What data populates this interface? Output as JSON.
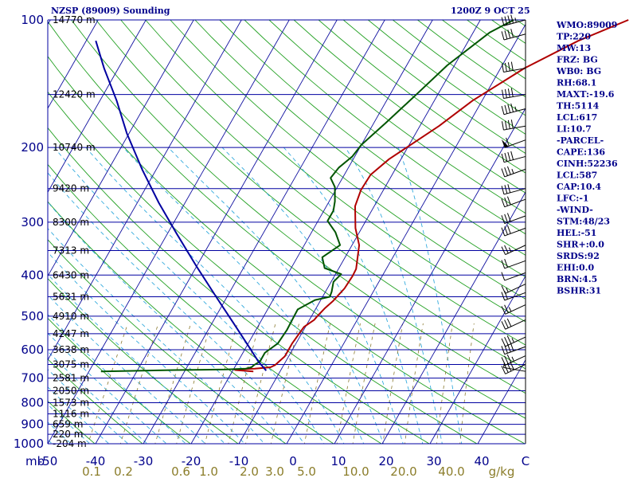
{
  "header": {
    "station": "NZSP (89009) Sounding",
    "time": "1200Z  9 OCT 25"
  },
  "colors": {
    "isobar": "#0000a0",
    "isotherm": "#1010a0",
    "dry_adiabat": "#22a022",
    "moist_adiabat": "#33aadd",
    "mixing_ratio": "#8a7a30",
    "temperature": "#b00000",
    "dewpoint": "#005500",
    "parcel": "#0000a0"
  },
  "chart_data": {
    "type": "line",
    "title": "NZSP (89009) Sounding",
    "pressure_levels": [
      {
        "p": 100,
        "label": "100",
        "height": "14770 m"
      },
      {
        "p": 150,
        "label": "",
        "height": "12420 m"
      },
      {
        "p": 200,
        "label": "200",
        "height": "10740 m"
      },
      {
        "p": 250,
        "label": "",
        "height": "9420 m"
      },
      {
        "p": 300,
        "label": "300",
        "height": "8300 m"
      },
      {
        "p": 350,
        "label": "",
        "height": "7313 m"
      },
      {
        "p": 400,
        "label": "400",
        "height": "6430 m"
      },
      {
        "p": 450,
        "label": "",
        "height": "5631 m"
      },
      {
        "p": 500,
        "label": "500",
        "height": "4910 m"
      },
      {
        "p": 550,
        "label": "",
        "height": "4247 m"
      },
      {
        "p": 600,
        "label": "600",
        "height": "3638 m"
      },
      {
        "p": 650,
        "label": "",
        "height": "3075 m"
      },
      {
        "p": 700,
        "label": "700",
        "height": "2581 m"
      },
      {
        "p": 750,
        "label": "",
        "height": "2050 m"
      },
      {
        "p": 800,
        "label": "800",
        "height": "1573 m"
      },
      {
        "p": 850,
        "label": "",
        "height": "1116 m"
      },
      {
        "p": 900,
        "label": "900",
        "height": "659 m"
      },
      {
        "p": 950,
        "label": "",
        "height": "220 m"
      },
      {
        "p": 1000,
        "label": "1000",
        "height": "-204 m"
      }
    ],
    "pressure_unit": "mb",
    "temperature_ticks": [
      "-50",
      "-40",
      "-30",
      "-20",
      "-10",
      "0",
      "10",
      "20",
      "30",
      "40",
      "C"
    ],
    "mixing_ratio_labels": [
      "0.1",
      "0.2",
      "0.6",
      "1.0",
      "2.0",
      "3.0",
      "5.0",
      "10.0",
      "20.0",
      "40.0",
      "g/kg"
    ],
    "xlim": [
      -50,
      50
    ],
    "ylim": [
      1000,
      100
    ],
    "y_scale": "log",
    "series": [
      {
        "name": "",
        "role": "temperature",
        "points": [
          [
            -15.6,
            675
          ],
          [
            -19.5,
            670
          ],
          [
            -19.8,
            668
          ],
          [
            -15.6,
            665
          ],
          [
            -12.5,
            660
          ],
          [
            -11.8,
            652
          ],
          [
            -10.8,
            622
          ],
          [
            -10.8,
            580
          ],
          [
            -10.3,
            530
          ],
          [
            -9.0,
            510
          ],
          [
            -8.8,
            500
          ],
          [
            -8.2,
            480
          ],
          [
            -7.3,
            460
          ],
          [
            -6.4,
            430
          ],
          [
            -6.2,
            402
          ],
          [
            -6.3,
            387
          ],
          [
            -8.5,
            340
          ],
          [
            -11.3,
            310
          ],
          [
            -14.0,
            275
          ],
          [
            -14.7,
            252
          ],
          [
            -14.5,
            232
          ],
          [
            -12.5,
            213
          ],
          [
            -6.0,
            178
          ],
          [
            -2.0,
            155
          ],
          [
            5.0,
            130
          ],
          [
            13.0,
            112
          ],
          [
            21.0,
            100
          ]
        ]
      },
      {
        "name": "",
        "role": "dewpoint",
        "points": [
          [
            -47.5,
            675
          ],
          [
            -32.3,
            670
          ],
          [
            -21.5,
            668
          ],
          [
            -17.5,
            665
          ],
          [
            -16.5,
            660
          ],
          [
            -16.2,
            652
          ],
          [
            -15.4,
            640
          ],
          [
            -15.4,
            610
          ],
          [
            -13.8,
            580
          ],
          [
            -13.5,
            540
          ],
          [
            -13.6,
            515
          ],
          [
            -13.7,
            482
          ],
          [
            -11.2,
            458
          ],
          [
            -8.5,
            450
          ],
          [
            -8.7,
            438
          ],
          [
            -9.5,
            415
          ],
          [
            -8.8,
            398
          ],
          [
            -13.0,
            385
          ],
          [
            -14.8,
            363
          ],
          [
            -12.5,
            340
          ],
          [
            -15.0,
            317
          ],
          [
            -18.0,
            298
          ],
          [
            -18.0,
            282
          ],
          [
            -18.8,
            268
          ],
          [
            -20.5,
            248
          ],
          [
            -22.5,
            236
          ],
          [
            -22.0,
            223
          ],
          [
            -20.5,
            210
          ],
          [
            -20.0,
            197
          ],
          [
            -17.5,
            175
          ],
          [
            -14.5,
            150
          ],
          [
            -11.5,
            128
          ],
          [
            -6.5,
            107
          ],
          [
            -3.0,
            100
          ]
        ]
      },
      {
        "name": "",
        "role": "parcel",
        "points": [
          [
            -13.0,
            672
          ],
          [
            -15.7,
            640
          ],
          [
            -19.5,
            590
          ],
          [
            -25.0,
            525
          ],
          [
            -32.3,
            450
          ],
          [
            -40.2,
            380
          ],
          [
            -48.0,
            320
          ],
          [
            -55.5,
            270
          ],
          [
            -63.0,
            225
          ],
          [
            -70.5,
            185
          ],
          [
            -76.5,
            155
          ],
          [
            -83.0,
            130
          ],
          [
            -88.0,
            112
          ]
        ]
      }
    ],
    "wind_barbs": [
      {
        "p": 100,
        "dir": 255,
        "spd": 45
      },
      {
        "p": 108,
        "dir": 255,
        "spd": 40
      },
      {
        "p": 130,
        "dir": 260,
        "spd": 40
      },
      {
        "p": 150,
        "dir": 260,
        "spd": 40
      },
      {
        "p": 162,
        "dir": 255,
        "spd": 45
      },
      {
        "p": 178,
        "dir": 260,
        "spd": 40
      },
      {
        "p": 192,
        "dir": 250,
        "spd": 60
      },
      {
        "p": 210,
        "dir": 255,
        "spd": 40
      },
      {
        "p": 225,
        "dir": 250,
        "spd": 35
      },
      {
        "p": 250,
        "dir": 255,
        "spd": 30
      },
      {
        "p": 265,
        "dir": 250,
        "spd": 30
      },
      {
        "p": 290,
        "dir": 250,
        "spd": 30
      },
      {
        "p": 310,
        "dir": 250,
        "spd": 30
      },
      {
        "p": 340,
        "dir": 245,
        "spd": 25
      },
      {
        "p": 370,
        "dir": 250,
        "spd": 20
      },
      {
        "p": 395,
        "dir": 250,
        "spd": 10
      },
      {
        "p": 420,
        "dir": 245,
        "spd": 15
      },
      {
        "p": 440,
        "dir": 250,
        "spd": 20
      },
      {
        "p": 470,
        "dir": 245,
        "spd": 25
      },
      {
        "p": 510,
        "dir": 245,
        "spd": 30
      },
      {
        "p": 560,
        "dir": 245,
        "spd": 35
      },
      {
        "p": 590,
        "dir": 250,
        "spd": 40
      },
      {
        "p": 620,
        "dir": 245,
        "spd": 35
      },
      {
        "p": 650,
        "dir": 245,
        "spd": 40
      },
      {
        "p": 675,
        "dir": 280,
        "spd": 5
      }
    ]
  },
  "indices": [
    "WMO:89009",
    "TP:220",
    "MW:13",
    "FRZ: BG",
    "WB0: BG",
    "RH:68.1",
    "MAXT:-19.6",
    "TH:5114",
    "LCL:617",
    "LI:10.7",
    "-PARCEL-",
    "CAPE:136",
    "CINH:52236",
    "LCL:587",
    "CAP:10.4",
    "LFC:-1",
    "-WIND-",
    "STM:48/23",
    "HEL:-51",
    "SHR+:0.0",
    "SRDS:92",
    "EHI:0.0",
    "BRN:4.5",
    "BSHR:31"
  ]
}
